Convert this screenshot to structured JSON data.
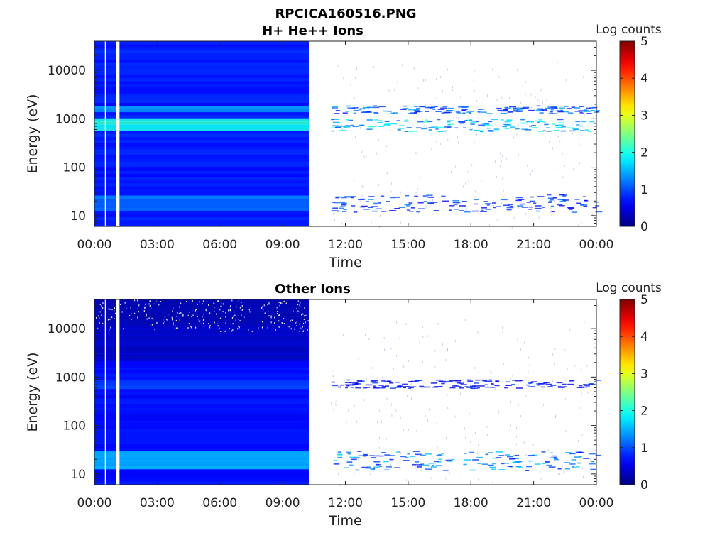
{
  "figure_title": "RPCICA160516.PNG",
  "chart_data": [
    {
      "type": "heatmap",
      "title": "H+ He++ Ions",
      "xlabel": "Time",
      "ylabel": "Energy (eV)",
      "x_ticks": [
        "00:00",
        "03:00",
        "06:00",
        "09:00",
        "12:00",
        "15:00",
        "18:00",
        "21:00",
        "00:00"
      ],
      "x_range_hours": [
        0,
        24
      ],
      "y_scale": "log",
      "y_ticks": [
        10,
        100,
        1000,
        10000
      ],
      "y_tick_labels": [
        "10",
        "100",
        "1000",
        "10000"
      ],
      "y_range": [
        6,
        40000
      ],
      "colorbar": {
        "label": "Log counts",
        "range": [
          0,
          5
        ],
        "ticks": [
          "0",
          "1",
          "2",
          "3",
          "4",
          "5"
        ],
        "colormap": "jet"
      },
      "data_gaps_hours": [
        [
          0.5,
          0.55
        ],
        [
          1.05,
          1.2
        ],
        [
          10.25,
          11.3
        ]
      ],
      "features": [
        {
          "energy_band_eV": [
            1300,
            1900
          ],
          "hours": [
            0,
            24
          ],
          "level": 1.5
        },
        {
          "energy_band_eV": [
            550,
            1000
          ],
          "hours": [
            0,
            24
          ],
          "level": 2.2
        },
        {
          "energy_band_eV": [
            12,
            28
          ],
          "hours": [
            0,
            24
          ],
          "level": 1.3
        }
      ]
    },
    {
      "type": "heatmap",
      "title": "Other Ions",
      "xlabel": "Time",
      "ylabel": "Energy (eV)",
      "x_ticks": [
        "00:00",
        "03:00",
        "06:00",
        "09:00",
        "12:00",
        "15:00",
        "18:00",
        "21:00",
        "00:00"
      ],
      "x_range_hours": [
        0,
        24
      ],
      "y_scale": "log",
      "y_ticks": [
        10,
        100,
        1000,
        10000
      ],
      "y_tick_labels": [
        "10",
        "100",
        "1000",
        "10000"
      ],
      "y_range": [
        6,
        40000
      ],
      "colorbar": {
        "label": "Log counts",
        "range": [
          0,
          5
        ],
        "ticks": [
          "0",
          "1",
          "2",
          "3",
          "4",
          "5"
        ],
        "colormap": "jet"
      },
      "data_gaps_hours": [
        [
          0.5,
          0.55
        ],
        [
          1.05,
          1.2
        ],
        [
          10.25,
          11.3
        ]
      ],
      "features": [
        {
          "energy_band_eV": [
            600,
            900
          ],
          "hours": [
            0,
            24
          ],
          "level": 1.0
        },
        {
          "energy_band_eV": [
            12,
            30
          ],
          "hours": [
            0,
            24
          ],
          "level": 1.7
        }
      ]
    }
  ]
}
